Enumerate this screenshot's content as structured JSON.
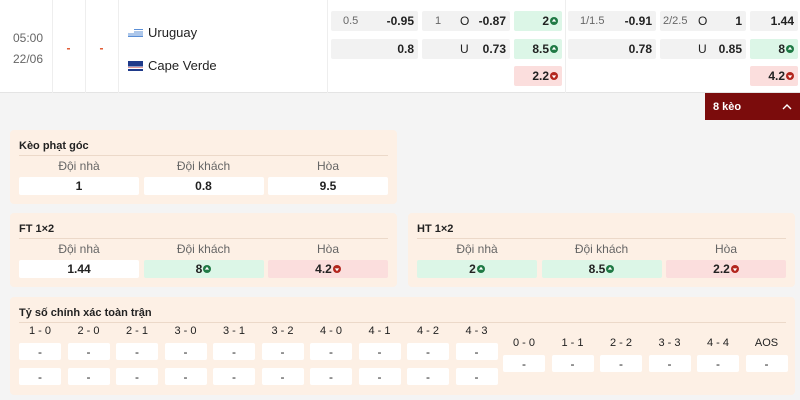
{
  "match": {
    "time": "05:00",
    "date": "22/06",
    "score_ft": "-",
    "score_ht": "-",
    "home": "Uruguay",
    "away": "Cape Verde"
  },
  "odds": {
    "handicap": {
      "line": 0.5,
      "home": -0.95,
      "away": 0.8
    },
    "over_under": {
      "line": 1,
      "over_label": "O",
      "over": -0.87,
      "under_label": "U",
      "under": 0.73
    },
    "x12": [
      {
        "value": 2,
        "trend": "up"
      },
      {
        "value": 8.5,
        "trend": "up"
      },
      {
        "value": 2.2,
        "trend": "down"
      }
    ],
    "handicap_ht": {
      "line": "1/1.5",
      "home": -0.91,
      "away": 0.78
    },
    "over_under_ht": {
      "line": "2/2.5",
      "over_label": "O",
      "over": 1,
      "under_label": "U",
      "under": 0.85
    },
    "x12_ht": [
      {
        "value": 1.44
      },
      {
        "value": 8,
        "trend": "up"
      },
      {
        "value": 4.2,
        "trend": "down"
      }
    ]
  },
  "more_button": "8 kèo",
  "corner": {
    "title": "Kèo phạt góc",
    "headers": [
      "Đội nhà",
      "Đội khách",
      "Hòa"
    ],
    "values": [
      {
        "value": 1
      },
      {
        "value": 0.8
      },
      {
        "value": 9.5
      }
    ]
  },
  "ft_1x2": {
    "title": "FT 1×2",
    "headers": [
      "Đội nhà",
      "Đội khách",
      "Hòa"
    ],
    "values": [
      {
        "value": 1.44
      },
      {
        "value": 8,
        "trend": "up"
      },
      {
        "value": 4.2,
        "trend": "down"
      }
    ]
  },
  "ht_1x2": {
    "title": "HT 1×2",
    "headers": [
      "Đội nhà",
      "Đội khách",
      "Hòa"
    ],
    "values": [
      {
        "value": 2,
        "trend": "up"
      },
      {
        "value": 8.5,
        "trend": "up"
      },
      {
        "value": 2.2,
        "trend": "down"
      }
    ]
  },
  "correct_score": {
    "title": "Tỷ số chính xác toàn trận",
    "wins": [
      {
        "label": "1 - 0",
        "values": [
          "-",
          "-"
        ]
      },
      {
        "label": "2 - 0",
        "values": [
          "-",
          "-"
        ]
      },
      {
        "label": "2 - 1",
        "values": [
          "-",
          "-"
        ]
      },
      {
        "label": "3 - 0",
        "values": [
          "-",
          "-"
        ]
      },
      {
        "label": "3 - 1",
        "values": [
          "-",
          "-"
        ]
      },
      {
        "label": "3 - 2",
        "values": [
          "-",
          "-"
        ]
      },
      {
        "label": "4 - 0",
        "values": [
          "-",
          "-"
        ]
      },
      {
        "label": "4 - 1",
        "values": [
          "-",
          "-"
        ]
      },
      {
        "label": "4 - 2",
        "values": [
          "-",
          "-"
        ]
      },
      {
        "label": "4 - 3",
        "values": [
          "-",
          "-"
        ]
      }
    ],
    "draws": [
      {
        "label": "0 - 0",
        "values": [
          "-"
        ]
      },
      {
        "label": "1 - 1",
        "values": [
          "-"
        ]
      },
      {
        "label": "2 - 2",
        "values": [
          "-"
        ]
      },
      {
        "label": "3 - 3",
        "values": [
          "-"
        ]
      },
      {
        "label": "4 - 4",
        "values": [
          "-"
        ]
      },
      {
        "label": "AOS",
        "values": [
          "-"
        ]
      }
    ]
  }
}
